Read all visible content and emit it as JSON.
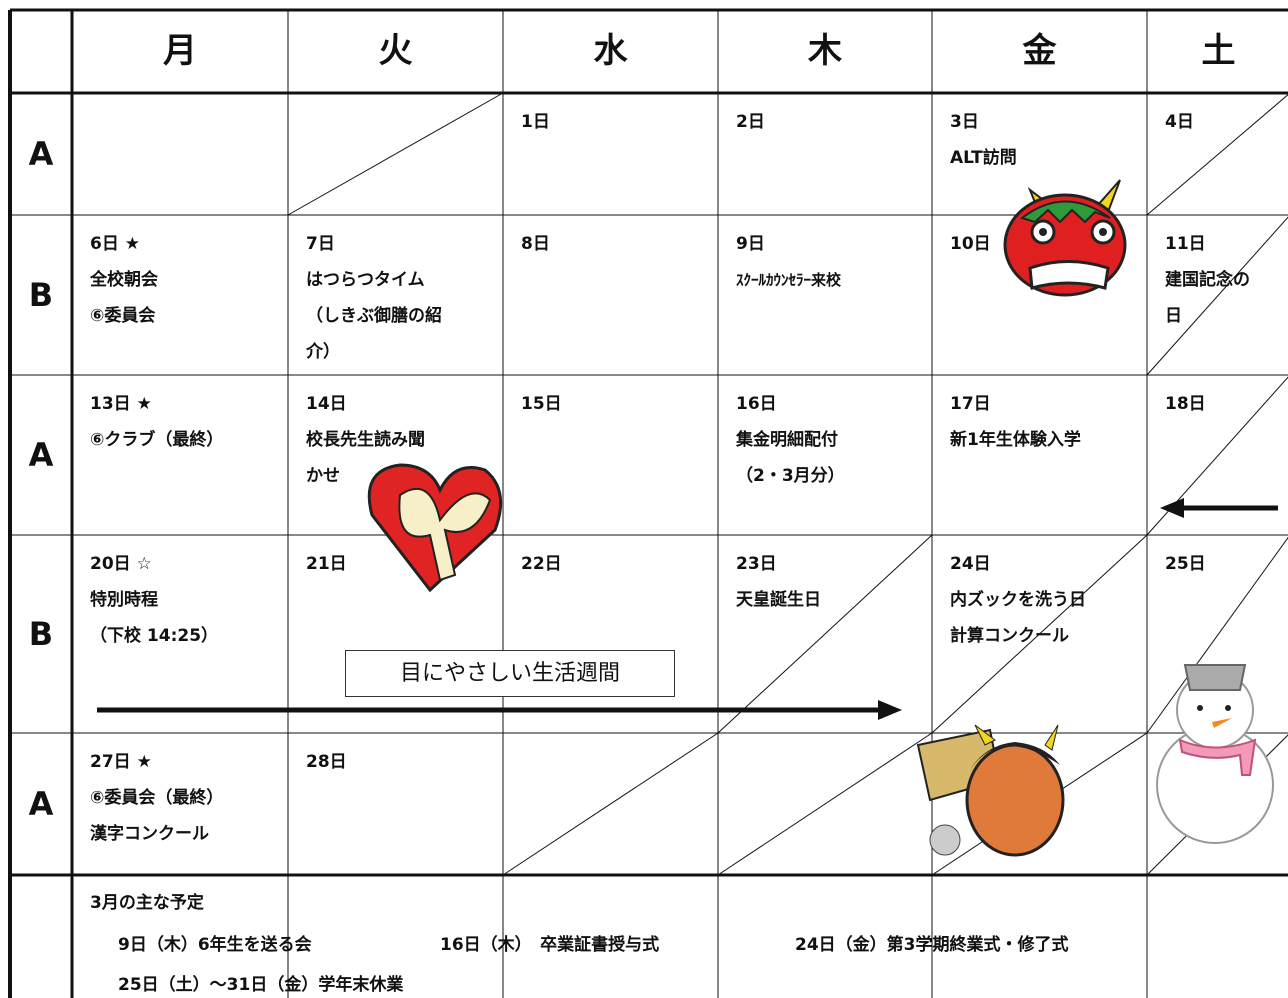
{
  "header": {
    "days": [
      "月",
      "火",
      "水",
      "木",
      "金",
      "土"
    ]
  },
  "rows": [
    {
      "label": "A",
      "cells": [
        [],
        [],
        [
          "1日"
        ],
        [
          "2日"
        ],
        [
          "3日",
          "ALT訪問"
        ],
        [
          "4日"
        ]
      ]
    },
    {
      "label": "B",
      "cells": [
        [
          "6日 ★",
          "全校朝会",
          "⑥委員会"
        ],
        [
          "7日",
          "はつらつタイム",
          "（しきぶ御膳の紹",
          "介）"
        ],
        [
          "8日"
        ],
        [
          "9日",
          "ｽｸｰﾙｶｳﾝｾﾗｰ来校"
        ],
        [
          "10日"
        ],
        [
          "11日",
          "建国記念の",
          "日"
        ]
      ]
    },
    {
      "label": "A",
      "cells": [
        [
          "13日 ★",
          "⑥クラブ（最終）"
        ],
        [
          "14日",
          "校長先生読み聞",
          "かせ"
        ],
        [
          "15日"
        ],
        [
          "16日",
          "集金明細配付",
          "（2・3月分）"
        ],
        [
          "17日",
          "新1年生体験入学"
        ],
        [
          "18日"
        ]
      ]
    },
    {
      "label": "B",
      "cells": [
        [
          "20日 ☆",
          "特別時程",
          "（下校 14:25）"
        ],
        [
          "21日"
        ],
        [
          "22日"
        ],
        [
          "23日",
          "天皇誕生日"
        ],
        [
          "24日",
          "内ズックを洗う日",
          "計算コンクール"
        ],
        [
          "25日"
        ]
      ]
    },
    {
      "label": "A",
      "cells": [
        [
          "27日 ★",
          "⑥委員会（最終）",
          "漢字コンクール"
        ],
        [
          "28日"
        ],
        [],
        [],
        [],
        []
      ]
    }
  ],
  "banner": "目にやさしい生活週間",
  "march": {
    "title": "3月の主な予定",
    "items": [
      "9日（木）6年生を送る会",
      "16日（木）　卒業証書授与式",
      "24日（金）第3学期終業式・修了式",
      "25日（土）～31日（金）学年末休業"
    ]
  }
}
